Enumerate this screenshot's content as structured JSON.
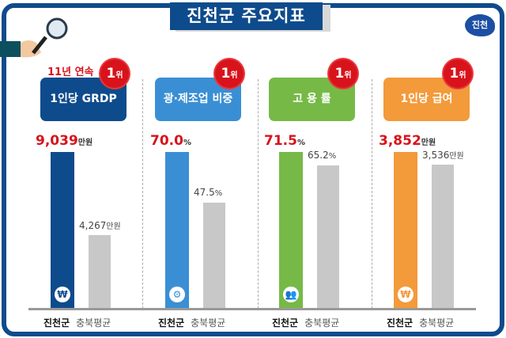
{
  "title": "진천군 주요지표",
  "logo": "진천",
  "streak": "11년 연속",
  "rank": {
    "num": "1",
    "unit": "위"
  },
  "chart_data": [
    {
      "type": "bar",
      "title": "1인당 GRDP",
      "color": "#0e4b8c",
      "icon": "won-icon",
      "categories": [
        "진천군",
        "충북평균"
      ],
      "values": [
        9039,
        4267
      ],
      "display": [
        "9,039",
        "4,267"
      ],
      "unit": "만원"
    },
    {
      "type": "bar",
      "title": "광·제조업 비중",
      "color": "#3a8fd4",
      "icon": "gear-icon",
      "categories": [
        "진천군",
        "충북평균"
      ],
      "values": [
        70.0,
        47.5
      ],
      "display": [
        "70.0",
        "47.5"
      ],
      "unit": "%"
    },
    {
      "type": "bar",
      "title": "고 용 률",
      "color": "#76b947",
      "icon": "people-icon",
      "categories": [
        "진천군",
        "충북평균"
      ],
      "values": [
        71.5,
        65.2
      ],
      "display": [
        "71.5",
        "65.2"
      ],
      "unit": "%"
    },
    {
      "type": "bar",
      "title": "1인당 급여",
      "color": "#f39a3a",
      "icon": "won-icon",
      "categories": [
        "진천군",
        "충북평균"
      ],
      "values": [
        3852,
        3536
      ],
      "display": [
        "3,852",
        "3,536"
      ],
      "unit": "만원"
    }
  ]
}
